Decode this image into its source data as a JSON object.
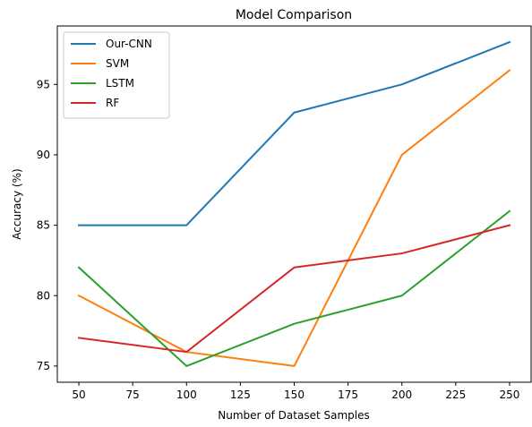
{
  "chart_data": {
    "type": "line",
    "title": "Model Comparison",
    "xlabel": "Number of Dataset Samples",
    "ylabel": "Accuracy (%)",
    "x": [
      50,
      100,
      150,
      200,
      250
    ],
    "xlim": [
      40,
      260
    ],
    "ylim": [
      73.85,
      99.15
    ],
    "xticks": [
      50,
      75,
      100,
      125,
      150,
      175,
      200,
      225,
      250
    ],
    "yticks": [
      75,
      80,
      85,
      90,
      95
    ],
    "grid": false,
    "legend_position": "top-left",
    "series": [
      {
        "name": "Our-CNN",
        "color": "#1f77b4",
        "values": [
          85,
          85,
          93,
          95,
          98
        ]
      },
      {
        "name": "SVM",
        "color": "#ff7f0e",
        "values": [
          80,
          76,
          75,
          90,
          96
        ]
      },
      {
        "name": "LSTM",
        "color": "#2ca02c",
        "values": [
          82,
          75,
          78,
          80,
          86
        ]
      },
      {
        "name": "RF",
        "color": "#d62728",
        "values": [
          77,
          76,
          82,
          83,
          85
        ]
      }
    ]
  }
}
